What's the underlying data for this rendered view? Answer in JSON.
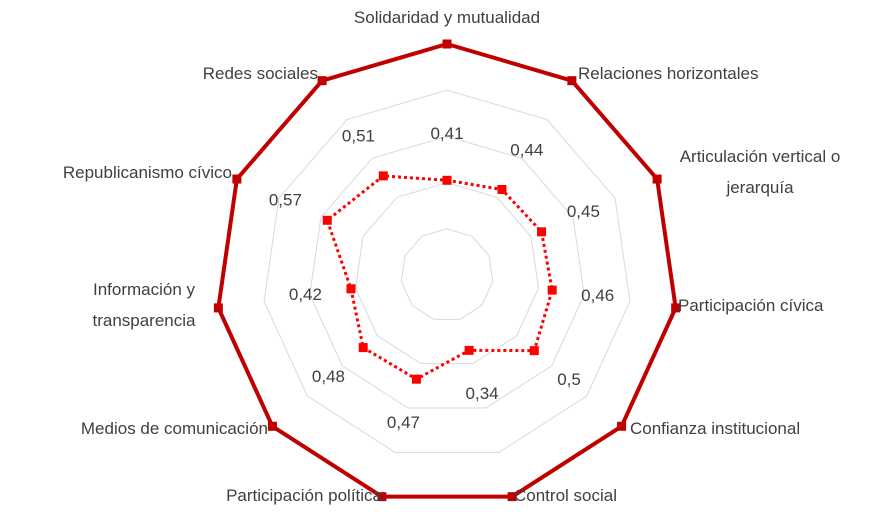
{
  "chart_data": {
    "type": "radar",
    "categories": [
      "Solidaridad y mutualidad",
      "Relaciones horizontales",
      "Articulación vertical o jerarquía",
      "Participación cívica",
      "Confianza institucional",
      "Control social",
      "Participación política",
      "Medios de comunicación",
      "Información y transparencia",
      "Republicanismo cívico",
      "Redes sociales"
    ],
    "series": [
      {
        "color": "#c00000",
        "line": "solid",
        "values": [
          1,
          1,
          1,
          1,
          1,
          1,
          1,
          1,
          1,
          1,
          1
        ]
      },
      {
        "color": "#ff0000",
        "line": "dotted",
        "values": [
          0.41,
          0.44,
          0.45,
          0.46,
          0.5,
          0.34,
          0.47,
          0.48,
          0.42,
          0.57,
          0.51
        ],
        "value_labels": [
          "0,41",
          "0,44",
          "0,45",
          "0,46",
          "0,5",
          "0,34",
          "0,47",
          "0,48",
          "0,42",
          "0,57",
          "0,51"
        ]
      }
    ],
    "ylim": [
      0,
      1
    ],
    "yticks": [
      0.2,
      0.4,
      0.6,
      0.8,
      1
    ],
    "grid": true
  }
}
